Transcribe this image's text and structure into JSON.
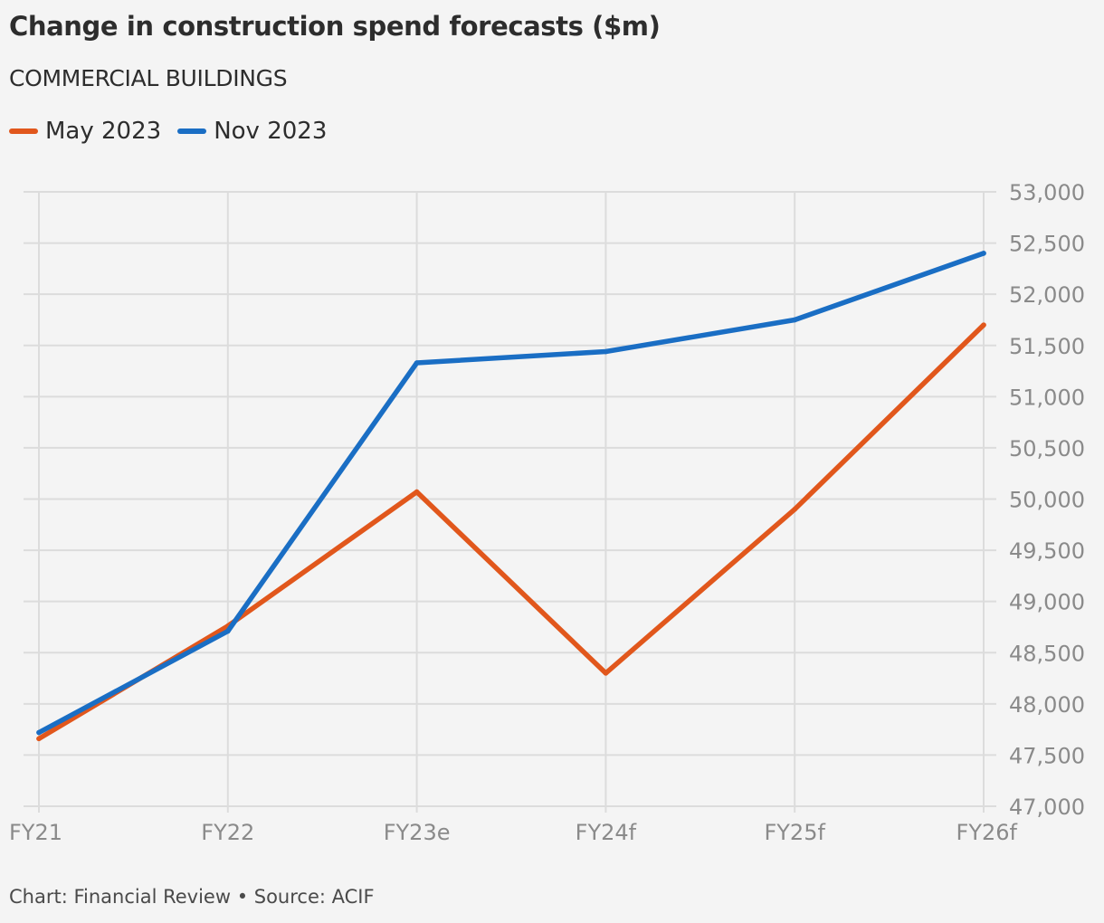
{
  "header": {
    "title": "Change in construction spend forecasts ($m)",
    "subtitle": "COMMERCIAL BUILDINGS"
  },
  "legend": {
    "items": [
      {
        "label": "May 2023",
        "color": "#e1571c"
      },
      {
        "label": "Nov 2023",
        "color": "#1a6ec4"
      }
    ]
  },
  "footer": {
    "text": "Chart: Financial Review • Source: ACIF"
  },
  "colors": {
    "background": "#f4f4f4",
    "grid": "#dcdcdc",
    "tick_text": "#8a8a8a"
  },
  "chart_data": {
    "type": "line",
    "title": "Change in construction spend forecasts ($m)",
    "subtitle": "COMMERCIAL BUILDINGS",
    "categories": [
      "FY21",
      "FY22",
      "FY23e",
      "FY24f",
      "FY25f",
      "FY26f"
    ],
    "series": [
      {
        "name": "May 2023",
        "color": "#e1571c",
        "values": [
          47660,
          48760,
          50070,
          48300,
          49900,
          51700
        ]
      },
      {
        "name": "Nov 2023",
        "color": "#1a6ec4",
        "values": [
          47720,
          48710,
          51330,
          51440,
          51750,
          52400
        ]
      }
    ],
    "ylim": [
      47000,
      53000
    ],
    "yticks": [
      47000,
      47500,
      48000,
      48500,
      49000,
      49500,
      50000,
      50500,
      51000,
      51500,
      52000,
      52500,
      53000
    ],
    "ytick_labels": [
      "47,000",
      "47,500",
      "48,000",
      "48,500",
      "49,000",
      "49,500",
      "50,000",
      "50,500",
      "51,000",
      "51,500",
      "52,000",
      "52,500",
      "53,000"
    ],
    "y_axis_position": "right",
    "grid": true,
    "legend_position": "top-left"
  }
}
